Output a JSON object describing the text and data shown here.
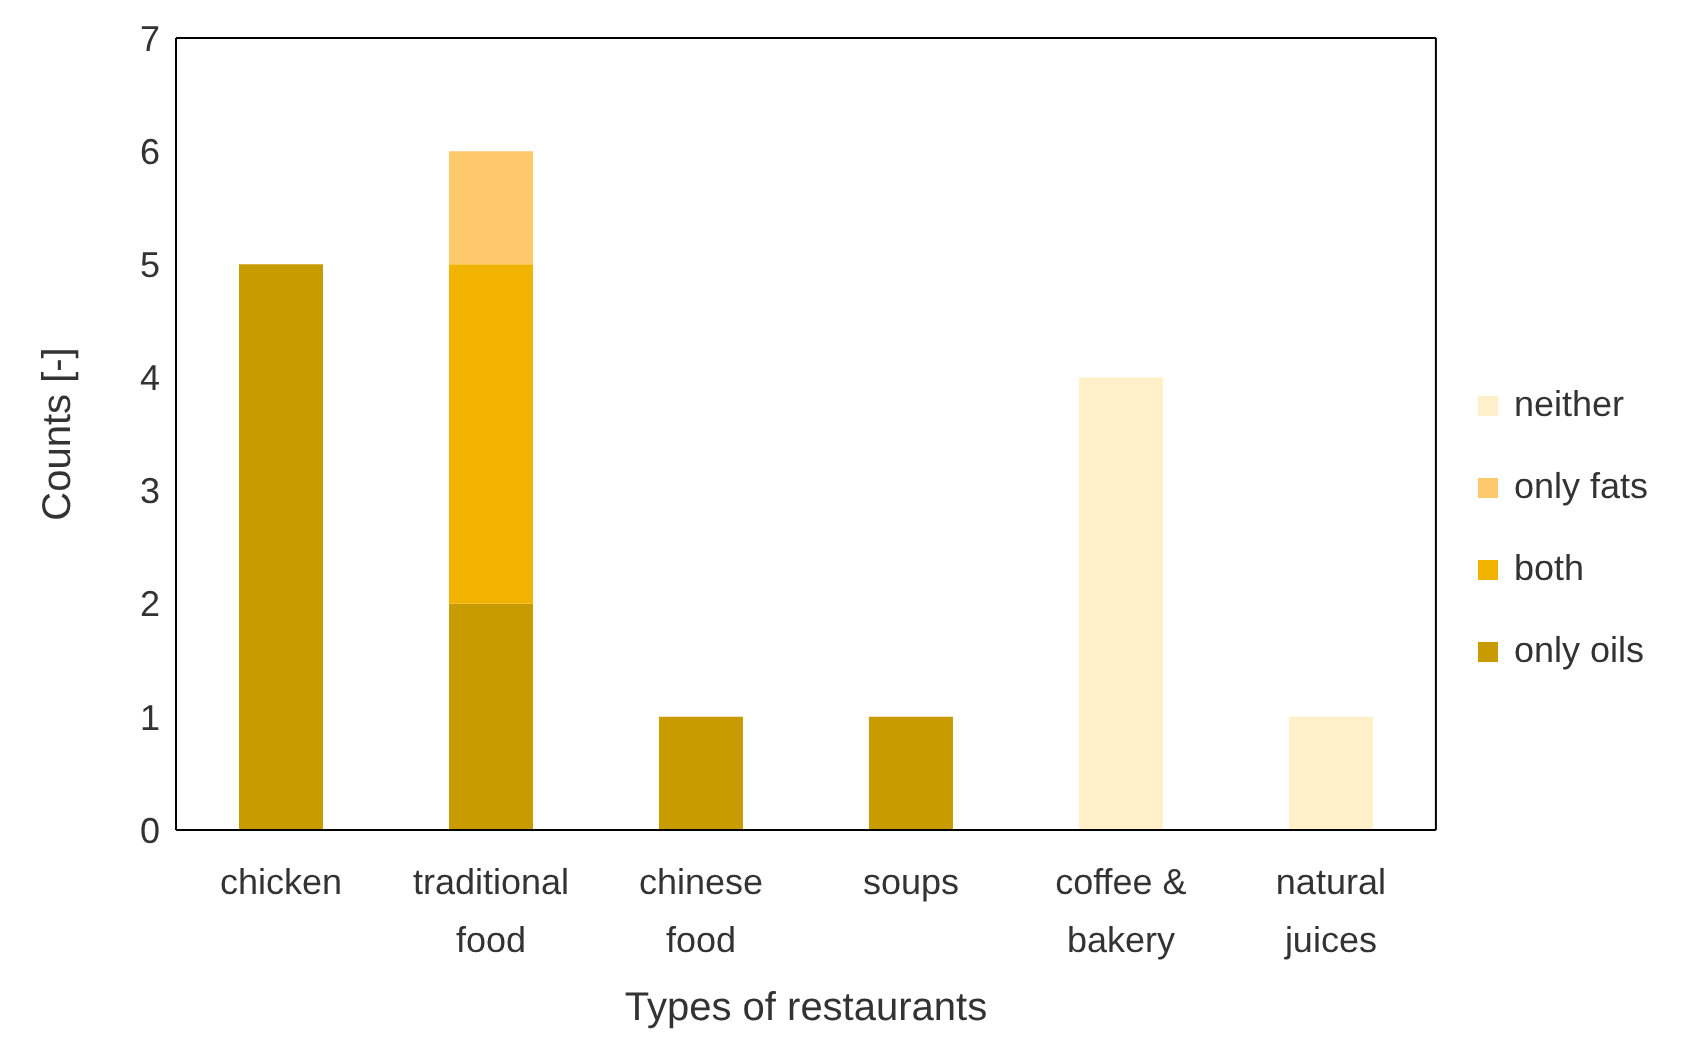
{
  "chart_data": {
    "type": "bar",
    "stacked": true,
    "xlabel": "Types of restaurants",
    "ylabel": "Counts [-]",
    "categories": [
      "chicken",
      "traditional food",
      "chinese food",
      "soups",
      "coffee & bakery",
      "natural juices"
    ],
    "series": [
      {
        "name": "only oils",
        "color": "#c89b00",
        "values": [
          5,
          2,
          1,
          1,
          0,
          0
        ]
      },
      {
        "name": "both",
        "color": "#f2b300",
        "values": [
          0,
          3,
          0,
          0,
          0,
          0
        ]
      },
      {
        "name": "only fats",
        "color": "#fec96b",
        "values": [
          0,
          1,
          0,
          0,
          0,
          0
        ]
      },
      {
        "name": "neither",
        "color": "#fff0c9",
        "values": [
          0,
          0,
          0,
          0,
          4,
          1
        ]
      }
    ],
    "ylim": [
      0,
      7
    ],
    "yticks": [
      0,
      1,
      2,
      3,
      4,
      5,
      6,
      7
    ],
    "legend": "right"
  }
}
